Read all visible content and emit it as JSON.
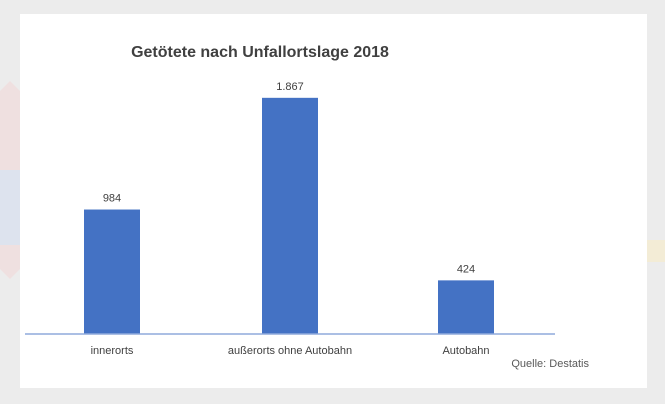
{
  "chart_data": {
    "type": "bar",
    "title": "Getötete nach Unfallortslage 2018",
    "categories": [
      "innerorts",
      "außerorts ohne Autobahn",
      "Autobahn"
    ],
    "values": [
      984,
      1867,
      424
    ],
    "data_labels": [
      "984",
      "1.867",
      "424"
    ],
    "xlabel": "",
    "ylabel": "",
    "ylim": [
      0,
      2000
    ],
    "grid": false,
    "legend": "none",
    "source": "Quelle: Destatis",
    "bar_color": "#4472c4",
    "axis_color": "#8faadc"
  }
}
